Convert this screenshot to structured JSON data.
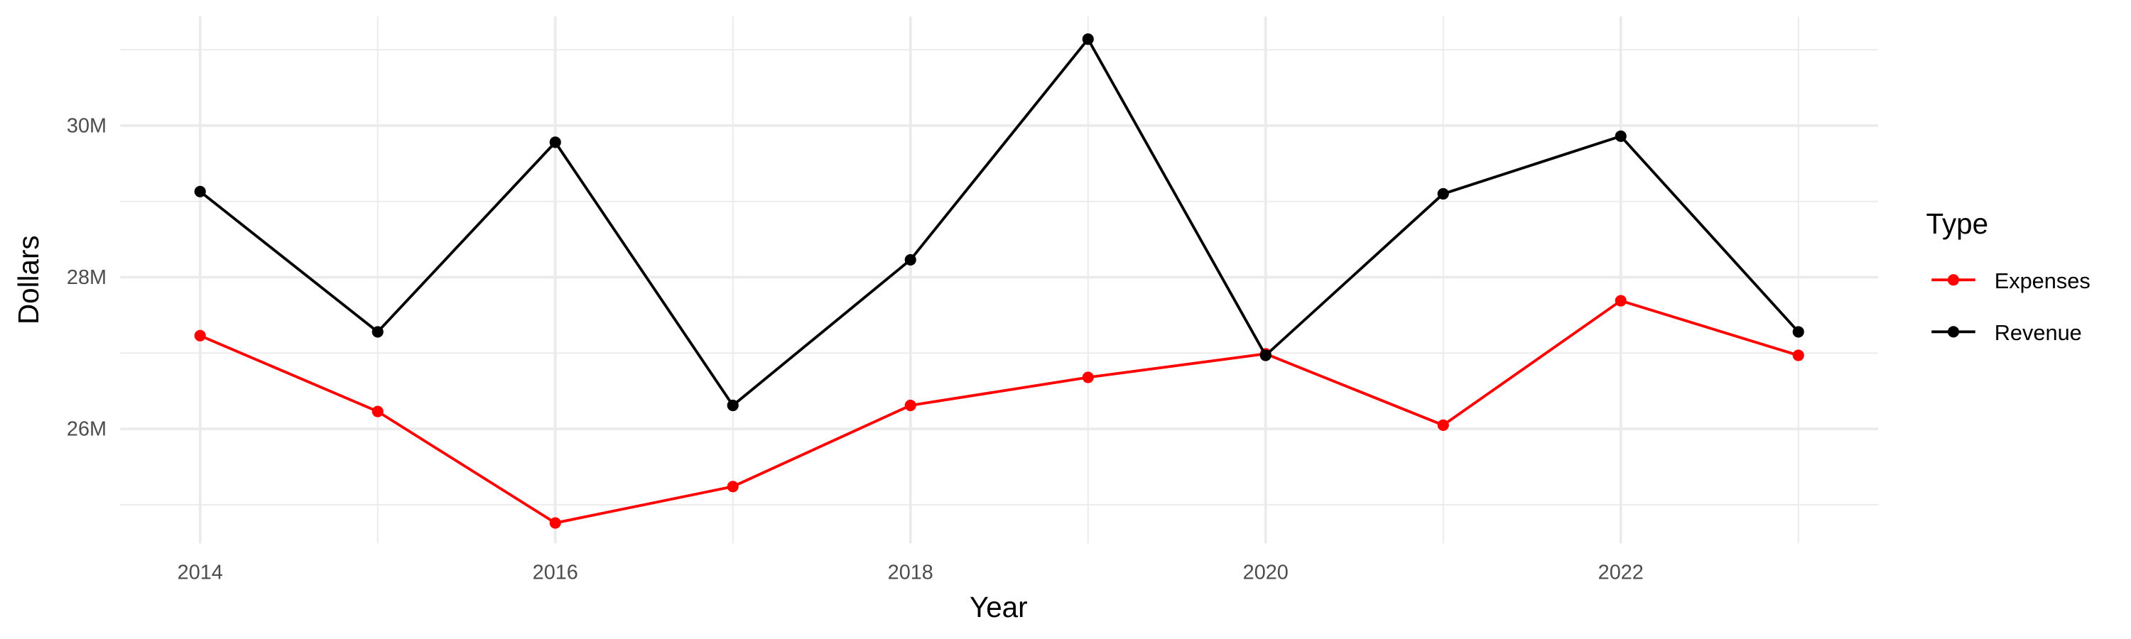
{
  "chart_data": {
    "type": "line",
    "x_label": "Year",
    "y_label": "Dollars",
    "legend_title": "Type",
    "x": [
      2014,
      2015,
      2016,
      2017,
      2018,
      2019,
      2020,
      2021,
      2022,
      2023
    ],
    "series": [
      {
        "name": "Expenses",
        "color": "#ff0000",
        "values": [
          27230000,
          26230000,
          24760000,
          25240000,
          26310000,
          26680000,
          26990000,
          26050000,
          27690000,
          26970000
        ]
      },
      {
        "name": "Revenue",
        "color": "#000000",
        "values": [
          29130000,
          27280000,
          29780000,
          26310000,
          28230000,
          31140000,
          26970000,
          29100000,
          29860000,
          27280000
        ]
      }
    ],
    "xlim": [
      2013.55,
      2023.45
    ],
    "xticks": [
      2014,
      2016,
      2018,
      2020,
      2022
    ],
    "ylim": [
      24490000,
      31440000
    ],
    "yticks": [
      {
        "value": 26000000,
        "label": "26M"
      },
      {
        "value": 28000000,
        "label": "28M"
      },
      {
        "value": 30000000,
        "label": "30M"
      }
    ],
    "grid": true,
    "legend_position": "right"
  }
}
